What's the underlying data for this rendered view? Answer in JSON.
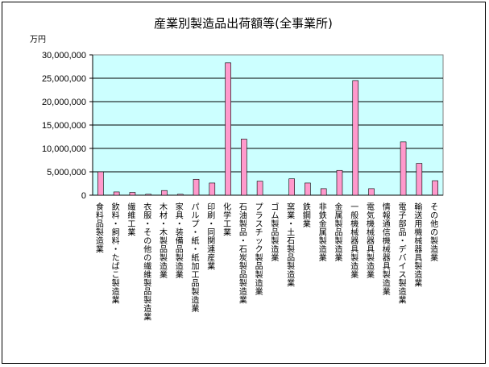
{
  "chart_data": {
    "type": "bar",
    "title": "産業別製造品出荷額等(全事業所)",
    "yunit": "万円",
    "ylim": [
      0,
      30000000
    ],
    "yticks": [
      0,
      5000000,
      10000000,
      15000000,
      20000000,
      25000000,
      30000000
    ],
    "ytick_labels": [
      "0",
      "5,000,000",
      "10,000,000",
      "15,000,000",
      "20,000,000",
      "25,000,000",
      "30,000,000"
    ],
    "grid": true,
    "plot_background": "#ccffff",
    "bar_color": "#ff99cc",
    "categories": [
      "食料品製造業",
      "飲料・飼料・たばこ製造業",
      "繊維工業",
      "衣服・その他の繊維製品製造業",
      "木材・木製品製造業",
      "家具・装備品製造業",
      "パルプ・紙・紙加工品製造業",
      "印刷・同関連産業",
      "化学工業",
      "石油製品・石炭製品製造業",
      "プラスチック製品製造業",
      "ゴム製品製造業",
      "窯業・土石製品製造業",
      "鉄鋼業",
      "非鉄金属製造業",
      "金属製品製造業",
      "一般機械器具製造業",
      "電気機械器具製造業",
      "情報通信機械器具製造業",
      "電子部品・デバイス製造業",
      "輸送用機械器具製造業",
      "その他の製造業"
    ],
    "values": [
      5000000,
      700000,
      600000,
      200000,
      1000000,
      200000,
      3400000,
      2600000,
      28300000,
      12000000,
      3000000,
      0,
      3500000,
      2600000,
      1400000,
      5300000,
      24500000,
      1400000,
      0,
      11400000,
      6800000,
      3100000
    ]
  }
}
